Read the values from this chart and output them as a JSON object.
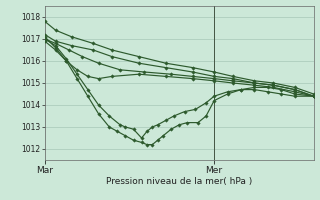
{
  "xlabel": "Pression niveau de la mer( hPa )",
  "ylim": [
    1011.5,
    1018.5
  ],
  "yticks": [
    1012,
    1013,
    1014,
    1015,
    1016,
    1017,
    1018
  ],
  "bg_color": "#cce8d8",
  "line_color": "#2d5a2d",
  "grid_color": "#a8c8b8",
  "xtick_labels": [
    "Mar",
    "Mer"
  ],
  "xtick_positions": [
    0.0,
    0.63
  ],
  "vline_pos": 0.63,
  "xlim": [
    0.0,
    1.0
  ],
  "lines": [
    {
      "x": [
        0.0,
        0.04,
        0.1,
        0.18,
        0.25,
        0.35,
        0.45,
        0.55,
        0.63,
        0.7,
        0.78,
        0.85,
        0.93,
        1.0
      ],
      "y": [
        1017.8,
        1017.4,
        1017.1,
        1016.8,
        1016.5,
        1016.2,
        1015.9,
        1015.7,
        1015.5,
        1015.3,
        1015.1,
        1015.0,
        1014.8,
        1014.5
      ]
    },
    {
      "x": [
        0.0,
        0.04,
        0.1,
        0.18,
        0.25,
        0.35,
        0.45,
        0.55,
        0.63,
        0.7,
        0.78,
        0.85,
        0.93,
        1.0
      ],
      "y": [
        1017.2,
        1016.9,
        1016.7,
        1016.5,
        1016.2,
        1015.9,
        1015.7,
        1015.5,
        1015.3,
        1015.2,
        1015.0,
        1014.9,
        1014.7,
        1014.4
      ]
    },
    {
      "x": [
        0.0,
        0.04,
        0.09,
        0.14,
        0.2,
        0.28,
        0.37,
        0.47,
        0.55,
        0.63,
        0.7,
        0.78,
        0.85,
        0.93,
        1.0
      ],
      "y": [
        1017.0,
        1016.8,
        1016.5,
        1016.2,
        1015.9,
        1015.6,
        1015.5,
        1015.4,
        1015.3,
        1015.2,
        1015.1,
        1015.0,
        1014.9,
        1014.7,
        1014.4
      ]
    },
    {
      "x": [
        0.0,
        0.04,
        0.08,
        0.12,
        0.16,
        0.2,
        0.25,
        0.35,
        0.45,
        0.55,
        0.63,
        0.7,
        0.78,
        0.85,
        0.93,
        1.0
      ],
      "y": [
        1016.9,
        1016.5,
        1016.0,
        1015.6,
        1015.3,
        1015.2,
        1015.3,
        1015.4,
        1015.3,
        1015.2,
        1015.1,
        1015.0,
        1014.9,
        1014.8,
        1014.6,
        1014.4
      ]
    },
    {
      "x": [
        0.0,
        0.04,
        0.08,
        0.12,
        0.16,
        0.2,
        0.24,
        0.28,
        0.3,
        0.33,
        0.36,
        0.38,
        0.4,
        0.42,
        0.45,
        0.48,
        0.52,
        0.56,
        0.6,
        0.63,
        0.68,
        0.73,
        0.78,
        0.83,
        0.88,
        0.93,
        1.0
      ],
      "y": [
        1017.0,
        1016.7,
        1016.1,
        1015.4,
        1014.7,
        1014.0,
        1013.5,
        1013.1,
        1013.0,
        1012.9,
        1012.5,
        1012.8,
        1013.0,
        1013.1,
        1013.3,
        1013.5,
        1013.7,
        1013.8,
        1014.1,
        1014.4,
        1014.6,
        1014.7,
        1014.7,
        1014.6,
        1014.5,
        1014.4,
        1014.4
      ]
    },
    {
      "x": [
        0.0,
        0.04,
        0.08,
        0.12,
        0.16,
        0.2,
        0.24,
        0.27,
        0.3,
        0.33,
        0.36,
        0.38,
        0.4,
        0.42,
        0.44,
        0.47,
        0.5,
        0.53,
        0.57,
        0.6,
        0.63,
        0.68,
        0.73,
        0.78,
        0.83,
        0.88,
        0.93,
        1.0
      ],
      "y": [
        1017.1,
        1016.6,
        1016.0,
        1015.2,
        1014.4,
        1013.6,
        1013.0,
        1012.8,
        1012.6,
        1012.4,
        1012.3,
        1012.2,
        1012.2,
        1012.4,
        1012.6,
        1012.9,
        1013.1,
        1013.2,
        1013.2,
        1013.5,
        1014.2,
        1014.5,
        1014.7,
        1014.8,
        1014.8,
        1014.7,
        1014.5,
        1014.4
      ]
    }
  ]
}
